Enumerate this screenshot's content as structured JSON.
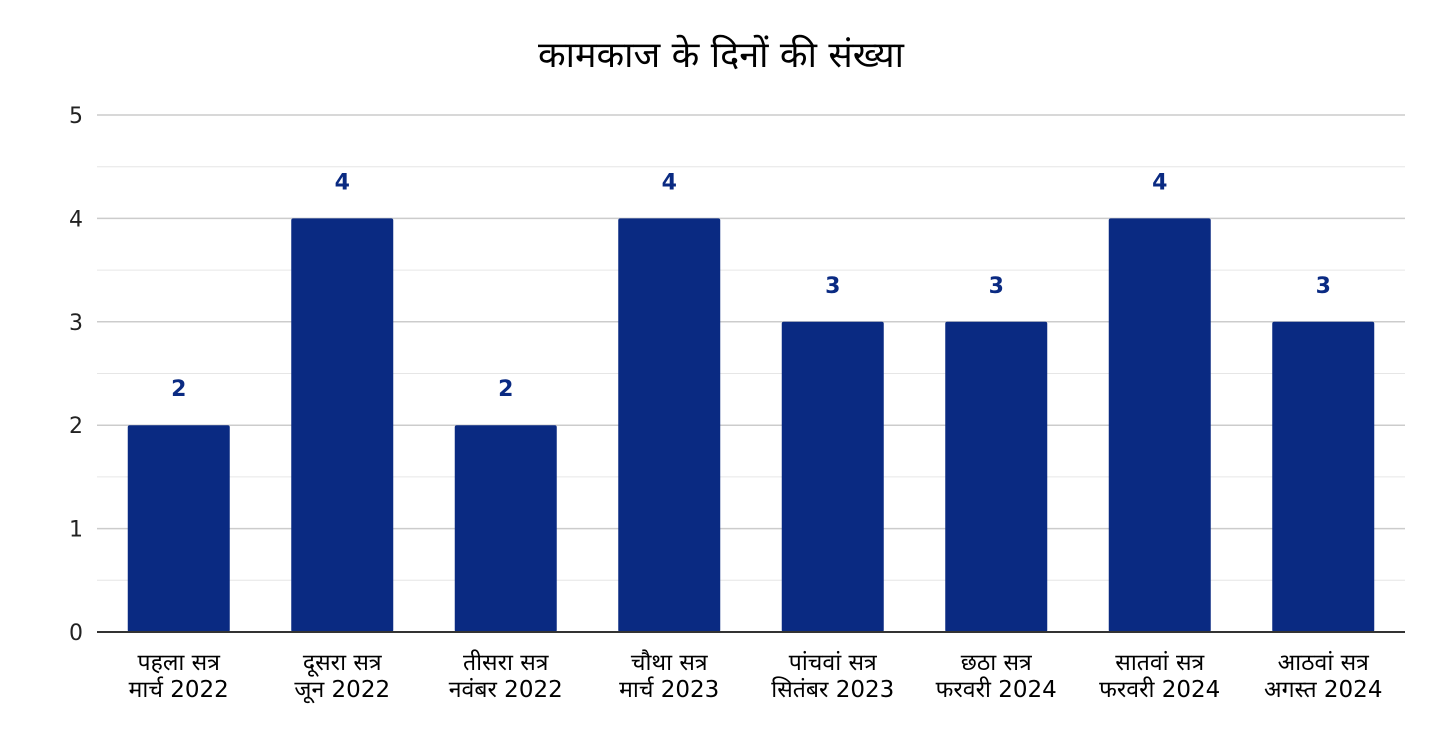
{
  "chart_data": {
    "type": "bar",
    "title": "कामकाज के दिनों की संख्या",
    "xlabel": "",
    "ylabel": "",
    "ylim": [
      0,
      5
    ],
    "y_ticks": [
      0,
      1,
      2,
      3,
      4,
      5
    ],
    "grid": true,
    "legend": "none",
    "categories": [
      [
        "पहला सत्र",
        "मार्च 2022"
      ],
      [
        "दूसरा सत्र",
        "जून 2022"
      ],
      [
        "तीसरा सत्र",
        "नवंबर 2022"
      ],
      [
        "चौथा सत्र",
        "मार्च 2023"
      ],
      [
        "पांचवां सत्र",
        "सितंबर 2023"
      ],
      [
        "छठा सत्र",
        "फरवरी 2024"
      ],
      [
        "सातवां सत्र",
        "फरवरी 2024"
      ],
      [
        "आठवां सत्र",
        "अगस्त 2024"
      ]
    ],
    "values": [
      2,
      4,
      2,
      4,
      3,
      3,
      4,
      3
    ],
    "colors": {
      "bar": "#0a2a82",
      "data_label": "#0a2a82",
      "grid_major": "#cccccc",
      "grid_minor": "#e6e6e6",
      "axis": "#333333"
    }
  }
}
